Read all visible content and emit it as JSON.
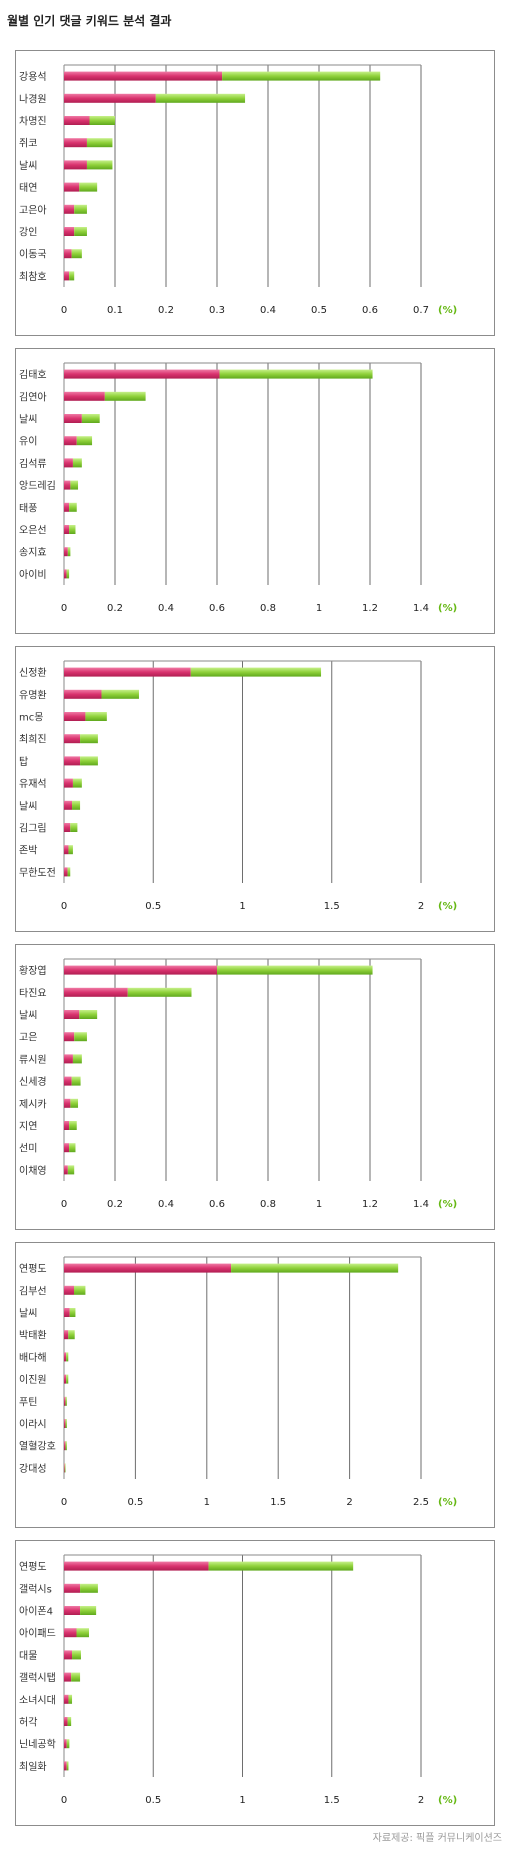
{
  "page": {
    "title": "월별 인기 댓글 키워드 분석 결과",
    "credit": "자료제공: 픽플 커뮤니케이션즈"
  },
  "colors": {
    "series_a": "#d9336e",
    "series_b": "#8fd13a",
    "axis": "#8a8a8a",
    "grid": "#6e6e6e",
    "unit": "#66b814"
  },
  "chart_data": [
    {
      "type": "bar",
      "orientation": "horizontal",
      "stacked": true,
      "categories": [
        "강용석",
        "나경원",
        "차명진",
        "쥐코",
        "날씨",
        "태연",
        "고은아",
        "강인",
        "이동국",
        "최참호"
      ],
      "series": [
        {
          "values": [
            0.31,
            0.18,
            0.05,
            0.045,
            0.045,
            0.03,
            0.02,
            0.02,
            0.015,
            0.01
          ]
        },
        {
          "values": [
            0.31,
            0.175,
            0.05,
            0.05,
            0.05,
            0.035,
            0.025,
            0.025,
            0.02,
            0.01
          ]
        }
      ],
      "xlim": [
        0,
        0.7
      ],
      "xticks": [
        "0",
        "0.1",
        "0.2",
        "0.3",
        "0.4",
        "0.5",
        "0.6",
        "0.7"
      ],
      "unit_label": "(%)",
      "grid": true
    },
    {
      "type": "bar",
      "orientation": "horizontal",
      "stacked": true,
      "categories": [
        "김태호",
        "김연아",
        "날씨",
        "유이",
        "김석류",
        "앙드레김",
        "태풍",
        "오은선",
        "송지효",
        "아이비"
      ],
      "series": [
        {
          "values": [
            0.61,
            0.16,
            0.07,
            0.05,
            0.035,
            0.025,
            0.02,
            0.02,
            0.015,
            0.01
          ]
        },
        {
          "values": [
            0.6,
            0.16,
            0.07,
            0.06,
            0.035,
            0.03,
            0.03,
            0.025,
            0.01,
            0.01
          ]
        }
      ],
      "xlim": [
        0,
        1.4
      ],
      "xticks": [
        "0",
        "0.2",
        "0.4",
        "0.6",
        "0.8",
        "1",
        "1.2",
        "1.4"
      ],
      "unit_label": "(%)",
      "grid": true
    },
    {
      "type": "bar",
      "orientation": "horizontal",
      "stacked": true,
      "categories": [
        "신정환",
        "유명환",
        "mc몽",
        "최희진",
        "탑",
        "유재석",
        "날씨",
        "김그림",
        "존박",
        "무한도전"
      ],
      "series": [
        {
          "values": [
            0.71,
            0.21,
            0.12,
            0.09,
            0.09,
            0.05,
            0.045,
            0.035,
            0.025,
            0.02
          ]
        },
        {
          "values": [
            0.73,
            0.21,
            0.12,
            0.1,
            0.1,
            0.05,
            0.045,
            0.04,
            0.025,
            0.015
          ]
        }
      ],
      "xlim": [
        0,
        2
      ],
      "xticks": [
        "0",
        "0.5",
        "1",
        "1.5",
        "2"
      ],
      "unit_label": "(%)",
      "grid": true
    },
    {
      "type": "bar",
      "orientation": "horizontal",
      "stacked": true,
      "categories": [
        "황장엽",
        "타진요",
        "날씨",
        "고은",
        "류시원",
        "신세경",
        "제시카",
        "지연",
        "선미",
        "이채영"
      ],
      "series": [
        {
          "values": [
            0.6,
            0.25,
            0.06,
            0.04,
            0.035,
            0.03,
            0.025,
            0.02,
            0.02,
            0.015
          ]
        },
        {
          "values": [
            0.61,
            0.25,
            0.07,
            0.05,
            0.035,
            0.035,
            0.03,
            0.03,
            0.025,
            0.025
          ]
        }
      ],
      "xlim": [
        0,
        1.4
      ],
      "xticks": [
        "0",
        "0.2",
        "0.4",
        "0.6",
        "0.8",
        "1",
        "1.2",
        "1.4"
      ],
      "unit_label": "(%)",
      "grid": true
    },
    {
      "type": "bar",
      "orientation": "horizontal",
      "stacked": true,
      "categories": [
        "연평도",
        "김부선",
        "날씨",
        "박태환",
        "배다해",
        "이진원",
        "푸틴",
        "이라시",
        "열혈강호",
        "강대성"
      ],
      "series": [
        {
          "values": [
            1.17,
            0.07,
            0.04,
            0.03,
            0.015,
            0.015,
            0.01,
            0.01,
            0.01,
            0.005
          ]
        },
        {
          "values": [
            1.17,
            0.08,
            0.04,
            0.045,
            0.015,
            0.015,
            0.01,
            0.01,
            0.01,
            0.005
          ]
        }
      ],
      "xlim": [
        0,
        2.5
      ],
      "xticks": [
        "0",
        "0.5",
        "1",
        "1.5",
        "2",
        "2.5"
      ],
      "unit_label": "(%)",
      "grid": true
    },
    {
      "type": "bar",
      "orientation": "horizontal",
      "stacked": true,
      "categories": [
        "연평도",
        "갤럭시s",
        "아이폰4",
        "아이패드",
        "대물",
        "갤럭시탭",
        "소녀시대",
        "허각",
        "닌네공학",
        "최일화"
      ],
      "series": [
        {
          "values": [
            0.81,
            0.09,
            0.09,
            0.07,
            0.045,
            0.04,
            0.025,
            0.02,
            0.015,
            0.015
          ]
        },
        {
          "values": [
            0.81,
            0.1,
            0.09,
            0.07,
            0.05,
            0.05,
            0.02,
            0.02,
            0.015,
            0.01
          ]
        }
      ],
      "xlim": [
        0,
        2
      ],
      "xticks": [
        "0",
        "0.5",
        "1",
        "1.5",
        "2"
      ],
      "unit_label": "(%)",
      "grid": true
    }
  ]
}
